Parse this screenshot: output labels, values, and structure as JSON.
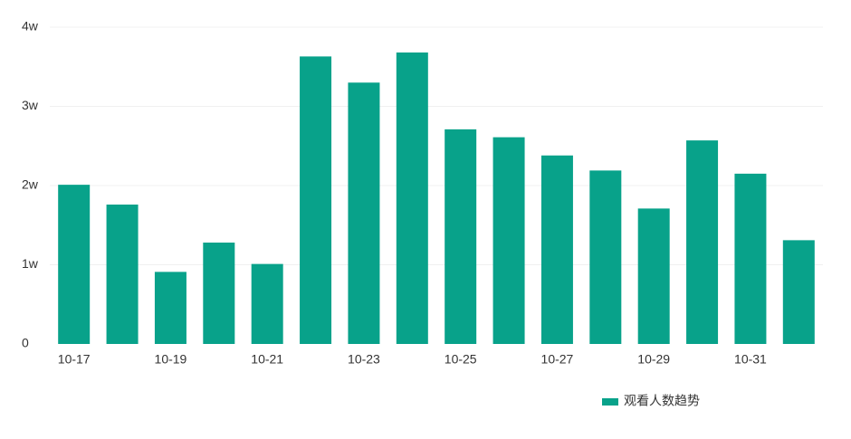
{
  "chart_data": {
    "type": "bar",
    "categories": [
      "10-17",
      null,
      "10-19",
      null,
      "10-21",
      null,
      "10-23",
      null,
      "10-25",
      null,
      "10-27",
      null,
      "10-29",
      null,
      "10-31",
      null
    ],
    "series": [
      {
        "name": "观看人数趋势",
        "color": "#08a28a",
        "values": [
          20100,
          17600,
          9100,
          12800,
          10100,
          36300,
          33000,
          36800,
          27100,
          26100,
          23800,
          21900,
          17100,
          25700,
          21500,
          13100
        ]
      }
    ],
    "ylim": [
      0,
      40000
    ],
    "yticks": [
      0,
      {
        "value": 10000,
        "label": "1w"
      },
      {
        "value": 20000,
        "label": "2w"
      },
      {
        "value": 30000,
        "label": "3w"
      },
      {
        "value": 40000,
        "label": "4w"
      }
    ],
    "grid": true,
    "legend": "bottom-right"
  }
}
